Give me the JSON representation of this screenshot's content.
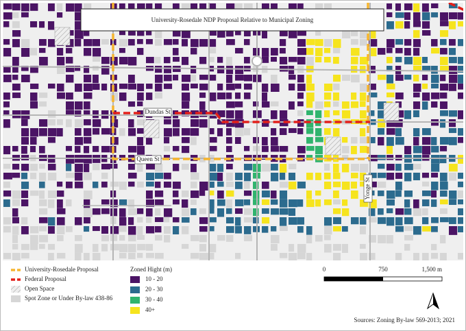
{
  "title": "University-Rosedale NDP Proposal Relative to Municipal Zoning",
  "streets": [
    "Dundas St",
    "Queen St",
    "Yonge St"
  ],
  "legend": {
    "routes": [
      {
        "name": "University-Rosedale Proposal",
        "color": "#f6b530"
      },
      {
        "name": "Federal Proposal",
        "color": "#e3201b"
      }
    ],
    "others": [
      {
        "name": "Open Space"
      },
      {
        "name": "Spot Zone or Under By-law 438-86",
        "color": "#d6d6d6"
      }
    ],
    "zoning_title": "Zoned Hight (m)",
    "zones": [
      {
        "name": "10 - 20",
        "color": "#4b1465"
      },
      {
        "name": "20 - 30",
        "color": "#2c6b8e"
      },
      {
        "name": "30 - 40",
        "color": "#31b46e"
      },
      {
        "name": "40+",
        "color": "#f6e41e"
      }
    ]
  },
  "scale": {
    "labels": [
      "0",
      "750",
      "1,500 m"
    ]
  },
  "source": "Sources: Zoning By-law 569-2013; 2021"
}
